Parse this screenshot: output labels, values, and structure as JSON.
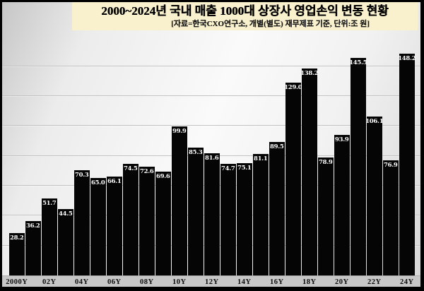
{
  "header": {
    "title": "2000~2024년 국내 매출 1000대 상장사 영업손익 변동 현황",
    "subtitle": "[자료=한국CXO연구소, 개별(별도) 재무제표 기준, 단위:조 원]",
    "box_color": "#f9f1cd"
  },
  "chart_data": {
    "type": "bar",
    "title": "2000~2024년 국내 매출 1000대 상장사 영업손익 변동 현황",
    "subtitle": "[자료=한국CXO연구소, 개별(별도) 재무제표 기준, 단위:조 원]",
    "unit": "조 원",
    "categories": [
      "2000",
      "2001",
      "2002",
      "2003",
      "2004",
      "2005",
      "2006",
      "2007",
      "2008",
      "2009",
      "2010",
      "2011",
      "2012",
      "2013",
      "2014",
      "2015",
      "2016",
      "2017",
      "2018",
      "2019",
      "2020",
      "2021",
      "2022",
      "2023",
      "2024"
    ],
    "values": [
      28.2,
      36.2,
      51.7,
      44.5,
      70.3,
      65.0,
      66.1,
      74.5,
      72.6,
      69.6,
      99.9,
      85.3,
      81.6,
      74.7,
      75.1,
      81.1,
      89.5,
      129.0,
      138.2,
      78.9,
      93.9,
      145.5,
      106.1,
      76.9,
      148.2
    ],
    "x_tick_labels": [
      "2000Y",
      "02Y",
      "04Y",
      "06Y",
      "08Y",
      "10Y",
      "12Y",
      "14Y",
      "16Y",
      "18Y",
      "20Y",
      "22Y",
      "24Y"
    ],
    "xlabel": "",
    "ylabel": "",
    "ylim": [
      0,
      160
    ],
    "gridline_step": 20,
    "grid": "horizontal",
    "legend_position": "none",
    "y_axis_tick_labels": "none",
    "bar_color": "#050505",
    "value_label_color": "#ffffff",
    "value_labels_visible": true
  }
}
